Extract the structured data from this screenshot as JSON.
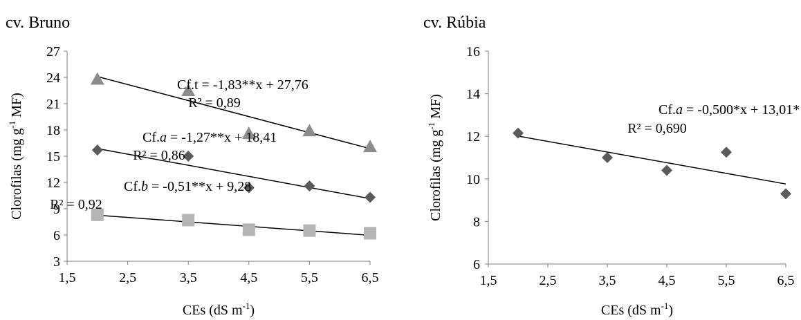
{
  "chart_data": [
    {
      "type": "scatter",
      "title": "cv. Bruno",
      "xlabel": "CEs (dS m",
      "xlabel_sup": "-1",
      "xlabel_end": ")",
      "ylabel": "Clorofilas  (mg g",
      "ylabel_sup": "-1",
      "ylabel_end": " MF)",
      "xlim": [
        1.5,
        6.5
      ],
      "ylim": [
        3,
        27
      ],
      "xticks": [
        1.5,
        2.5,
        3.5,
        4.5,
        5.5,
        6.5
      ],
      "xtick_labels": [
        "1,5",
        "2,5",
        "3,5",
        "4,5",
        "5,5",
        "6,5"
      ],
      "yticks": [
        3,
        6,
        9,
        12,
        15,
        18,
        21,
        24,
        27
      ],
      "ytick_labels": [
        "3",
        "6",
        "9",
        "12",
        "15",
        "18",
        "21",
        "24",
        "27"
      ],
      "grid": false,
      "series": [
        {
          "marker": "triangle",
          "color": "#8c8c8c",
          "x": [
            2,
            3.5,
            4.5,
            5.5,
            6.5
          ],
          "y": [
            23.8,
            22.5,
            17.6,
            17.9,
            16.1
          ],
          "trend": {
            "slope": -1.83,
            "intercept": 27.76
          },
          "equation": {
            "pre": "Cf.t = -1,83**x + 27,76",
            "ital": "",
            "post": "",
            "r2": "R² = 0,89"
          }
        },
        {
          "marker": "diamond",
          "color": "#5a5a5a",
          "x": [
            2,
            3.5,
            4.5,
            5.5,
            6.5
          ],
          "y": [
            15.7,
            15.0,
            11.4,
            11.6,
            10.3
          ],
          "trend": {
            "slope": -1.27,
            "intercept": 18.41
          },
          "equation": {
            "pre": "Cf.",
            "ital": "a",
            "post": " = -1,27**x + 18,41",
            "r2": "R² = 0,86"
          }
        },
        {
          "marker": "square",
          "color": "#b4b4b4",
          "x": [
            2,
            3.5,
            4.5,
            5.5,
            6.5
          ],
          "y": [
            8.3,
            7.7,
            6.6,
            6.5,
            6.2
          ],
          "trend": {
            "slope": -0.51,
            "intercept": 9.28
          },
          "equation": {
            "pre": "Cf.",
            "ital": "b",
            "post": " = -0,51**x + 9,28",
            "r2": "R² = 0,92"
          }
        }
      ]
    },
    {
      "type": "scatter",
      "title": "cv. Rúbia",
      "xlabel": "CEs (dS m",
      "xlabel_sup": "-1",
      "xlabel_end": ")",
      "ylabel": "Clorofilas  (mg g",
      "ylabel_sup": "-1",
      "ylabel_end": " MF)",
      "xlim": [
        1.5,
        6.5
      ],
      "ylim": [
        6,
        16
      ],
      "xticks": [
        1.5,
        2.5,
        3.5,
        4.5,
        5.5,
        6.5
      ],
      "xtick_labels": [
        "1,5",
        "2,5",
        "3,5",
        "4,5",
        "5,5",
        "6,5"
      ],
      "yticks": [
        6,
        8,
        10,
        12,
        14,
        16
      ],
      "ytick_labels": [
        "6",
        "8",
        "10",
        "12",
        "14",
        "16"
      ],
      "grid": false,
      "series": [
        {
          "marker": "diamond",
          "color": "#5a5a5a",
          "x": [
            2,
            3.5,
            4.5,
            5.5,
            6.5
          ],
          "y": [
            12.15,
            11.0,
            10.4,
            11.25,
            9.3
          ],
          "trend": {
            "slope": -0.5,
            "intercept": 13.01
          },
          "equation": {
            "pre": "Cf.",
            "ital": "a",
            "post": " = -0,500*x + 13,01*",
            "r2": "R² = 0,690"
          }
        }
      ]
    }
  ]
}
